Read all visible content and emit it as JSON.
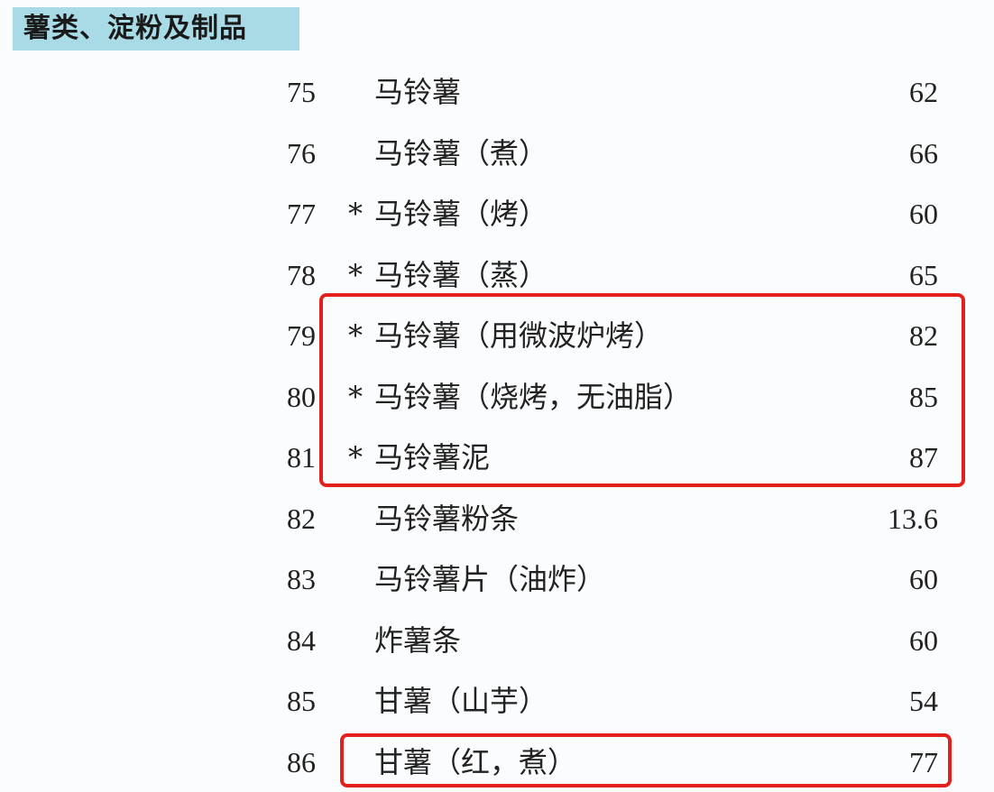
{
  "section": {
    "title": "薯类、淀粉及制品"
  },
  "rows": [
    {
      "no": "75",
      "star": "",
      "name": "马铃薯",
      "gi": "62"
    },
    {
      "no": "76",
      "star": "",
      "name": "马铃薯（煮）",
      "gi": "66"
    },
    {
      "no": "77",
      "star": "*",
      "name": "马铃薯（烤）",
      "gi": "60"
    },
    {
      "no": "78",
      "star": "*",
      "name": "马铃薯（蒸）",
      "gi": "65"
    },
    {
      "no": "79",
      "star": "*",
      "name": "马铃薯（用微波炉烤）",
      "gi": "82"
    },
    {
      "no": "80",
      "star": "*",
      "name": "马铃薯（烧烤，无油脂）",
      "gi": "85"
    },
    {
      "no": "81",
      "star": "*",
      "name": "马铃薯泥",
      "gi": "87"
    },
    {
      "no": "82",
      "star": "",
      "name": "马铃薯粉条",
      "gi": "13.6"
    },
    {
      "no": "83",
      "star": "",
      "name": "马铃薯片（油炸）",
      "gi": "60"
    },
    {
      "no": "84",
      "star": "",
      "name": "炸薯条",
      "gi": "60"
    },
    {
      "no": "85",
      "star": "",
      "name": "甘薯（山芋）",
      "gi": "54"
    },
    {
      "no": "86",
      "star": "",
      "name": "甘薯（红，煮）",
      "gi": "77"
    }
  ],
  "highlight_color": "#e3211c"
}
